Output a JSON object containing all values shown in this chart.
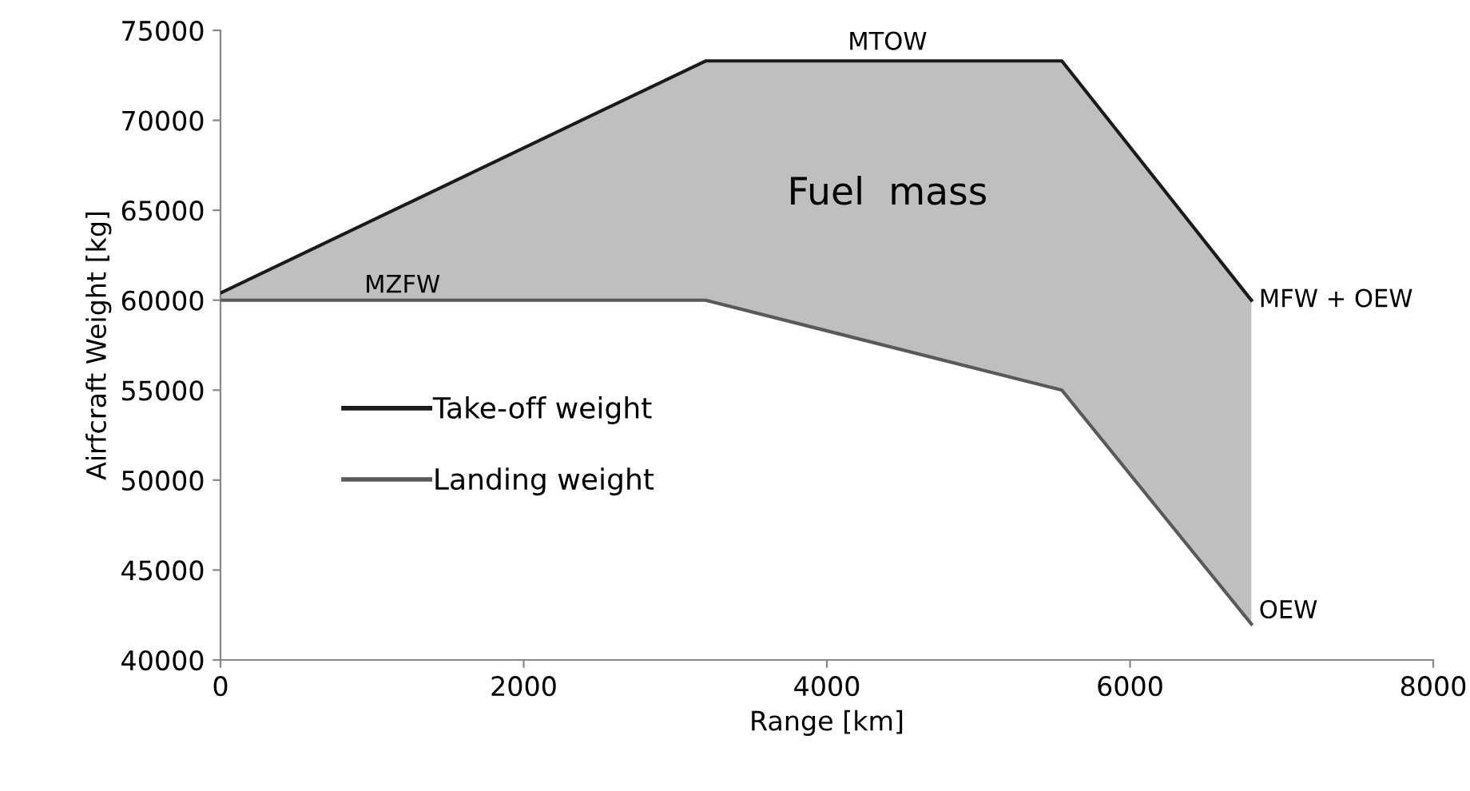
{
  "chart_data": {
    "type": "line",
    "xlabel": "Range [km]",
    "ylabel": "Airfcraft Weight [kg]",
    "x": [
      0,
      3200,
      5550,
      6800
    ],
    "series": [
      {
        "name": "Take-off weight",
        "color": "#1a1a1a",
        "values": [
          60400,
          73300,
          73300,
          60000
        ],
        "lower": [
          60000,
          60000,
          55000,
          42000
        ],
        "upper": [
          60400,
          73300,
          73300,
          60000
        ]
      },
      {
        "name": "Landing weight",
        "color": "#595959",
        "values": [
          60000,
          60000,
          55000,
          42000
        ]
      }
    ],
    "xlim": [
      0,
      8000
    ],
    "xticks": [
      0,
      2000,
      4000,
      6000,
      8000
    ],
    "ylim": [
      40000,
      75000
    ],
    "yticks": [
      40000,
      45000,
      50000,
      55000,
      60000,
      65000,
      70000,
      75000
    ],
    "grid": false,
    "legend": "bottom left",
    "marker": "none",
    "line_style": "solid",
    "annotations": [
      "MTOW",
      "MZFW",
      "Fuel  mass",
      {
        "text": "MFW + OEW",
        "x": 6850,
        "y": 60000
      },
      {
        "text": "OEW",
        "x": 6850,
        "y": 42700
      }
    ]
  }
}
